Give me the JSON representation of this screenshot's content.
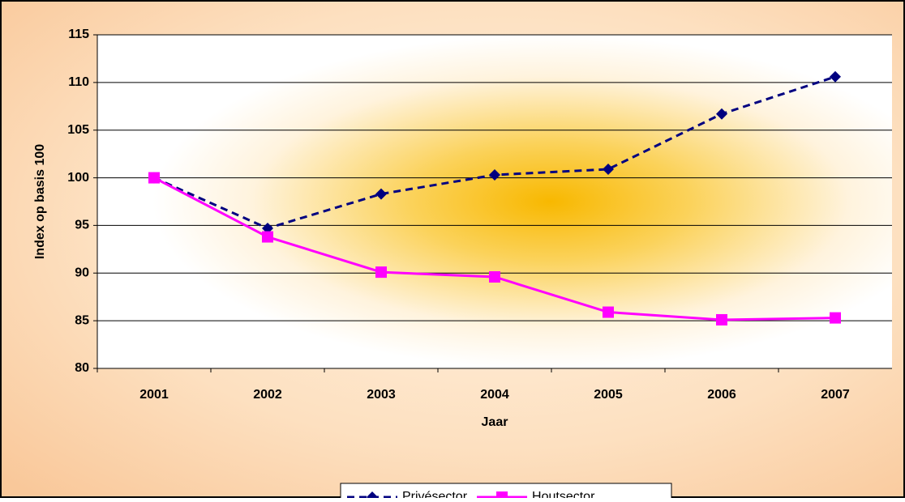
{
  "chart_data": {
    "type": "line",
    "x_label": "Jaar",
    "y_label": "Index op basis 100",
    "categories": [
      "2001",
      "2002",
      "2003",
      "2004",
      "2005",
      "2006",
      "2007"
    ],
    "series": [
      {
        "name": "Privésector",
        "color": "#000080",
        "dash": true,
        "marker": "diamond",
        "values": [
          100,
          94.7,
          98.3,
          100.3,
          100.9,
          106.7,
          110.6
        ]
      },
      {
        "name": "Houtsector",
        "color": "#ff00ff",
        "dash": false,
        "marker": "square",
        "values": [
          100,
          93.8,
          90.1,
          89.6,
          85.9,
          85.1,
          85.3
        ]
      }
    ],
    "ylim": [
      80,
      115
    ],
    "yticks": [
      80,
      85,
      90,
      95,
      100,
      105,
      110,
      115
    ],
    "grid": true,
    "legend": "bottom"
  }
}
